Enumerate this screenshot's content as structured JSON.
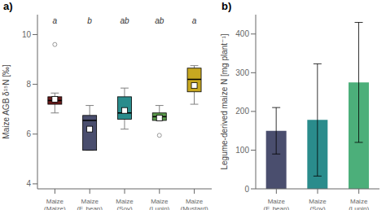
{
  "chart_data": [
    {
      "type": "box",
      "title": "a)",
      "categories": [
        "Maize\n(Maize)",
        "Maize\n(F. bean)",
        "Maize\n(Soy)",
        "Maize\n(Lupin)",
        "Maize\n(Mustard)"
      ],
      "colors": [
        "#6B1A1A",
        "#4A4E6E",
        "#2A8C8C",
        "#5A9A4A",
        "#C8A820"
      ],
      "significance": [
        "a",
        "b",
        "ab",
        "ab",
        "a"
      ],
      "ylabel": "Maize AGB δ¹⁵N [‰]",
      "ylim": [
        3.8,
        10.8
      ],
      "yticks": [
        4,
        6,
        8,
        10
      ],
      "boxes": [
        {
          "q1": 7.2,
          "median": 7.35,
          "q3": 7.5,
          "whisker_low": 6.85,
          "whisker_high": 7.65,
          "mean": 7.4,
          "outliers": [
            9.6
          ]
        },
        {
          "q1": 5.35,
          "median": 6.55,
          "q3": 6.75,
          "whisker_low": 5.35,
          "whisker_high": 7.15,
          "mean": 6.2,
          "outliers": []
        },
        {
          "q1": 6.6,
          "median": 6.85,
          "q3": 7.5,
          "whisker_low": 6.2,
          "whisker_high": 7.85,
          "mean": 6.95,
          "outliers": []
        },
        {
          "q1": 6.55,
          "median": 6.7,
          "q3": 6.85,
          "whisker_low": 6.55,
          "whisker_high": 7.15,
          "mean": 6.65,
          "outliers": [
            5.95
          ]
        },
        {
          "q1": 7.7,
          "median": 8.2,
          "q3": 8.65,
          "whisker_low": 7.2,
          "whisker_high": 8.75,
          "mean": 7.95,
          "outliers": []
        }
      ],
      "marker": "square",
      "grid": false
    },
    {
      "type": "bar",
      "title": "b)",
      "categories": [
        "Maize\n(F. bean)",
        "Maize\n(Soy)",
        "Maize\n(Lupin)"
      ],
      "colors": [
        "#4A4E6E",
        "#2A8C8C",
        "#4CAF7A"
      ],
      "ylabel": "Legume-derived maize N [mg plant⁻¹]",
      "ylim": [
        0,
        450
      ],
      "yticks": [
        0,
        100,
        200,
        300,
        400
      ],
      "values": [
        150,
        178,
        275
      ],
      "error_bars": [
        60,
        145,
        155
      ],
      "grid": false
    }
  ]
}
